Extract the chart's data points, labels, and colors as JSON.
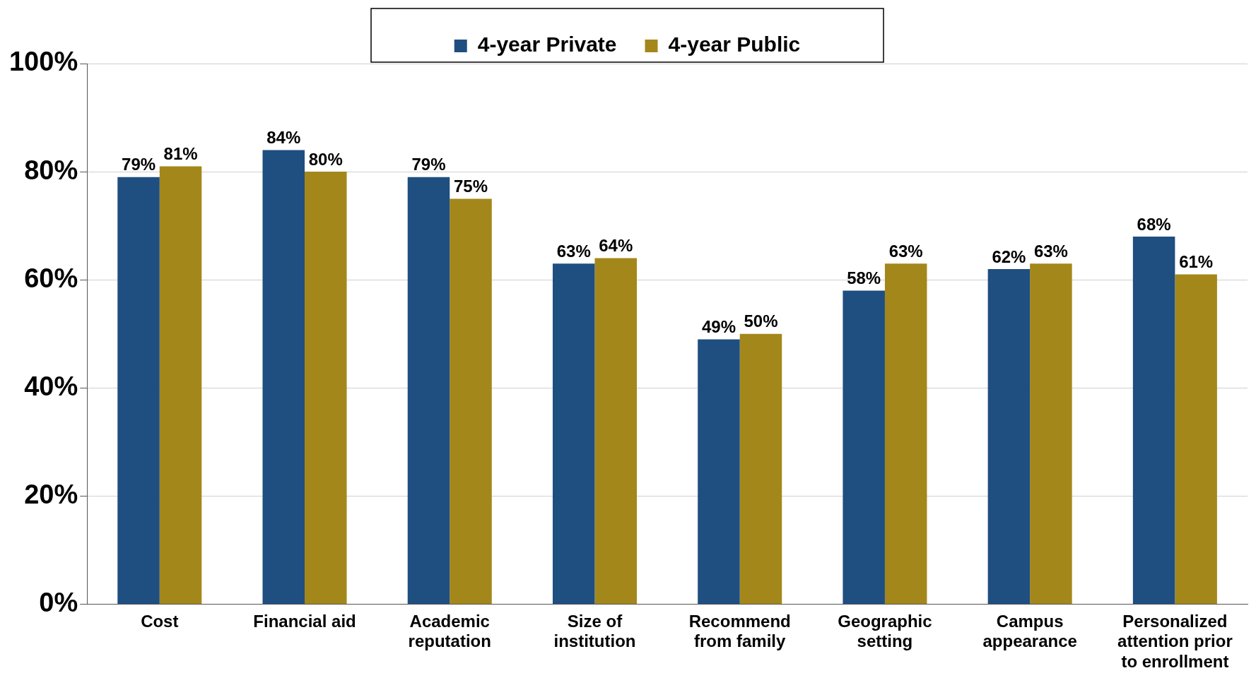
{
  "chart_data": {
    "type": "bar",
    "categories": [
      "Cost",
      "Financial aid",
      "Academic\nreputation",
      "Size of\ninstitution",
      "Recommend\nfrom family",
      "Geographic\nsetting",
      "Campus\nappearance",
      "Personalized\nattention prior\nto enrollment"
    ],
    "series": [
      {
        "name": "4-year Private",
        "color": "#1f4e80",
        "values": [
          79,
          84,
          79,
          63,
          49,
          58,
          62,
          68
        ],
        "value_labels": [
          "79%",
          "84%",
          "79%",
          "63%",
          "49%",
          "58%",
          "62%",
          "68%"
        ]
      },
      {
        "name": "4-year Public",
        "color": "#a4871a",
        "values": [
          81,
          80,
          75,
          64,
          50,
          63,
          63,
          61
        ],
        "value_labels": [
          "81%",
          "80%",
          "75%",
          "64%",
          "50%",
          "63%",
          "63%",
          "61%"
        ]
      }
    ],
    "ylim": [
      0,
      100
    ],
    "yticks": [
      {
        "value": 0,
        "label": "0%"
      },
      {
        "value": 20,
        "label": "20%"
      },
      {
        "value": 40,
        "label": "40%"
      },
      {
        "value": 60,
        "label": "60%"
      },
      {
        "value": 80,
        "label": "80%"
      },
      {
        "value": 100,
        "label": "100%"
      }
    ],
    "grid": "y",
    "legend": "top"
  }
}
